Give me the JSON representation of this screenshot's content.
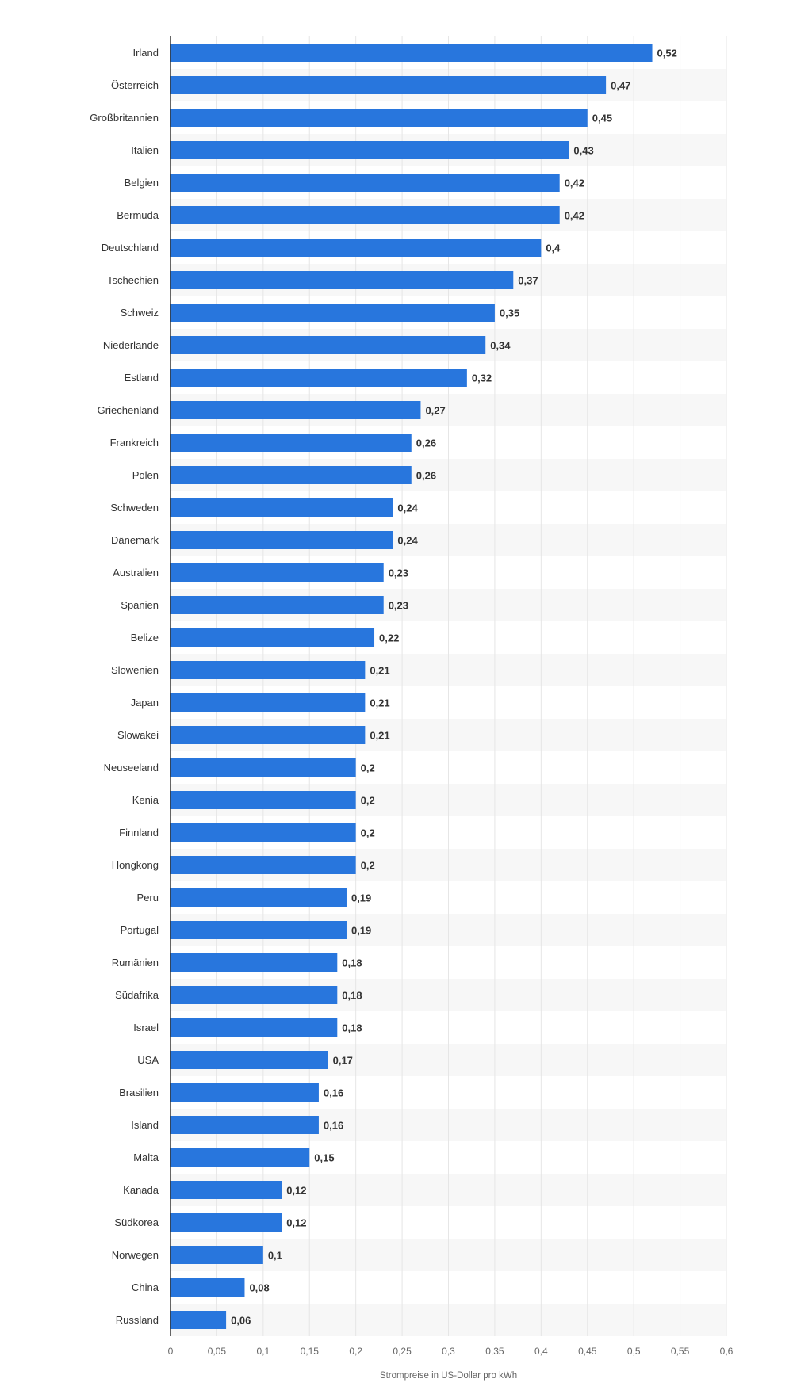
{
  "chart_data": {
    "type": "bar",
    "orientation": "horizontal",
    "title": "",
    "xlabel": "Strompreise in US-Dollar pro kWh",
    "ylabel": "",
    "xlim": [
      0,
      0.6
    ],
    "x_ticks": [
      0,
      0.05,
      0.1,
      0.15,
      0.2,
      0.25,
      0.3,
      0.35,
      0.4,
      0.45,
      0.5,
      0.55,
      0.6
    ],
    "x_tick_labels": [
      "0",
      "0,05",
      "0,1",
      "0,15",
      "0,2",
      "0,25",
      "0,3",
      "0,35",
      "0,4",
      "0,45",
      "0,5",
      "0,55",
      "0,6"
    ],
    "grid": true,
    "legend": "none",
    "bar_color": "#2876dd",
    "band_color": "#f7f7f7",
    "gridline_color": "#e6e6e6",
    "categories": [
      "Irland",
      "Österreich",
      "Großbritannien",
      "Italien",
      "Belgien",
      "Bermuda",
      "Deutschland",
      "Tschechien",
      "Schweiz",
      "Niederlande",
      "Estland",
      "Griechenland",
      "Frankreich",
      "Polen",
      "Schweden",
      "Dänemark",
      "Australien",
      "Spanien",
      "Belize",
      "Slowenien",
      "Japan",
      "Slowakei",
      "Neuseeland",
      "Kenia",
      "Finnland",
      "Hongkong",
      "Peru",
      "Portugal",
      "Rumänien",
      "Südafrika",
      "Israel",
      "USA",
      "Brasilien",
      "Island",
      "Malta",
      "Kanada",
      "Südkorea",
      "Norwegen",
      "China",
      "Russland"
    ],
    "values": [
      0.52,
      0.47,
      0.45,
      0.43,
      0.42,
      0.42,
      0.4,
      0.37,
      0.35,
      0.34,
      0.32,
      0.27,
      0.26,
      0.26,
      0.24,
      0.24,
      0.23,
      0.23,
      0.22,
      0.21,
      0.21,
      0.21,
      0.2,
      0.2,
      0.2,
      0.2,
      0.19,
      0.19,
      0.18,
      0.18,
      0.18,
      0.17,
      0.16,
      0.16,
      0.15,
      0.12,
      0.12,
      0.1,
      0.08,
      0.06
    ],
    "value_labels": [
      "0,52",
      "0,47",
      "0,45",
      "0,43",
      "0,42",
      "0,42",
      "0,4",
      "0,37",
      "0,35",
      "0,34",
      "0,32",
      "0,27",
      "0,26",
      "0,26",
      "0,24",
      "0,24",
      "0,23",
      "0,23",
      "0,22",
      "0,21",
      "0,21",
      "0,21",
      "0,2",
      "0,2",
      "0,2",
      "0,2",
      "0,19",
      "0,19",
      "0,18",
      "0,18",
      "0,18",
      "0,17",
      "0,16",
      "0,16",
      "0,15",
      "0,12",
      "0,12",
      "0,1",
      "0,08",
      "0,06"
    ]
  }
}
